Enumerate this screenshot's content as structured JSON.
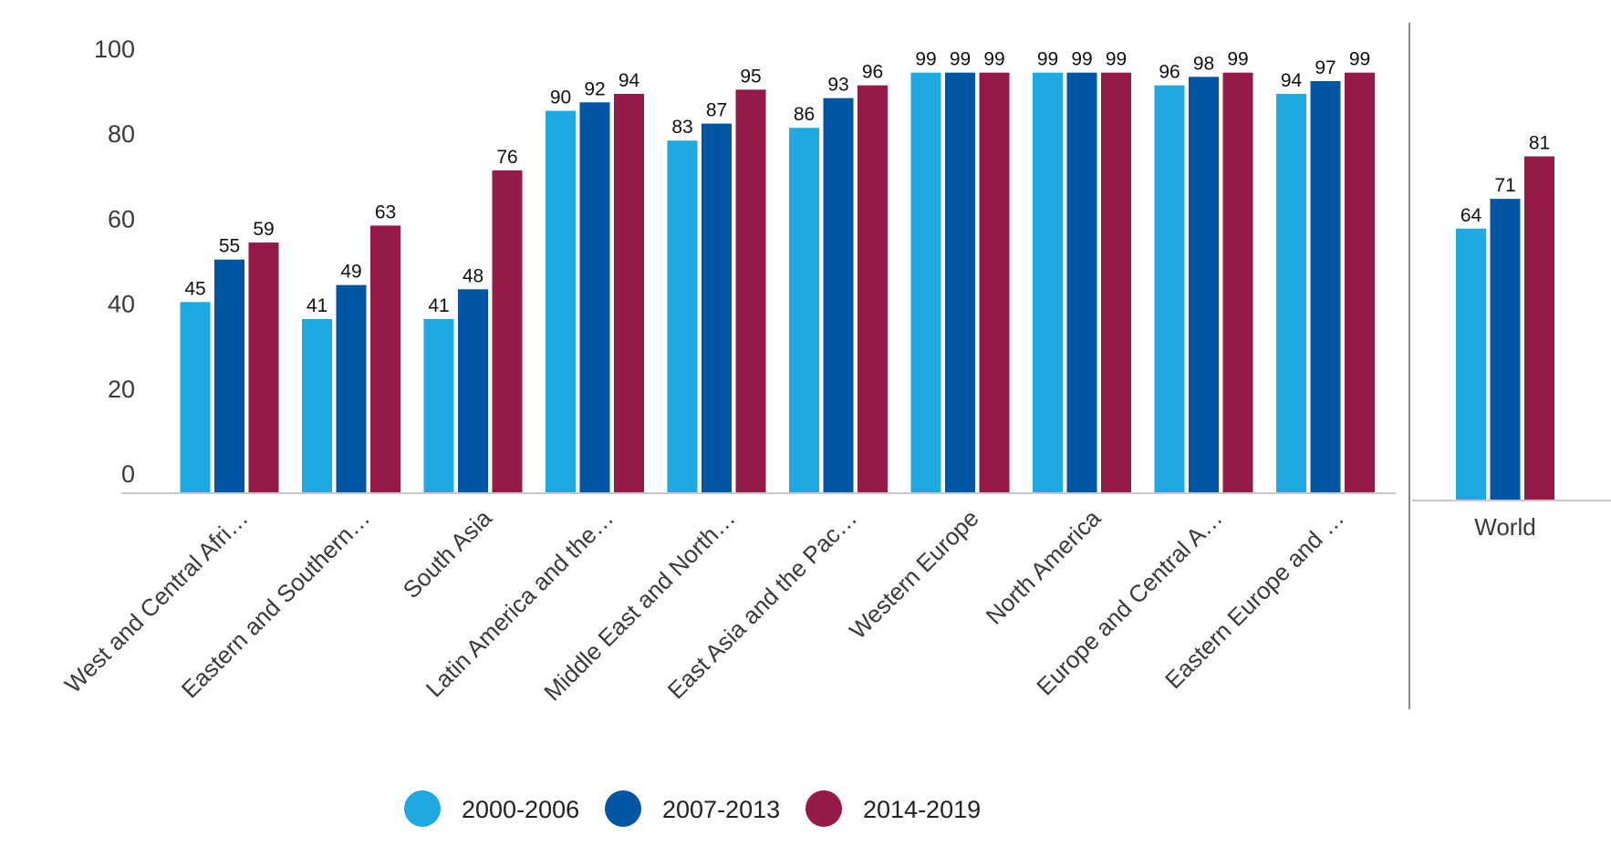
{
  "chart_data": [
    {
      "type": "bar",
      "categories": [
        "West and Central Afri…",
        "Eastern and Southern…",
        "South Asia",
        "Latin America and the…",
        "Middle East and North…",
        "East Asia and the Pac…",
        "Western Europe",
        "North America",
        "Europe and Central A…",
        "Eastern Europe and …"
      ],
      "series": [
        {
          "name": "2000-2006",
          "color": "#1ea9e1",
          "values": [
            45,
            41,
            41,
            90,
            83,
            86,
            99,
            99,
            96,
            94
          ]
        },
        {
          "name": "2007-2013",
          "color": "#0055a5",
          "values": [
            55,
            49,
            48,
            92,
            87,
            93,
            99,
            99,
            98,
            97
          ]
        },
        {
          "name": "2014-2019",
          "color": "#961a48",
          "values": [
            59,
            63,
            76,
            94,
            95,
            96,
            99,
            99,
            99,
            99
          ]
        }
      ],
      "yticks": [
        0,
        20,
        40,
        60,
        80,
        100
      ],
      "ylim": [
        0,
        100
      ],
      "grid": false,
      "legend_position": "bottom"
    },
    {
      "type": "bar",
      "categories": [
        "World"
      ],
      "series": [
        {
          "name": "2000-2006",
          "color": "#1ea9e1",
          "values": [
            64
          ]
        },
        {
          "name": "2007-2013",
          "color": "#0055a5",
          "values": [
            71
          ]
        },
        {
          "name": "2014-2019",
          "color": "#961a48",
          "values": [
            81
          ]
        }
      ],
      "ylim": [
        0,
        100
      ],
      "grid": false
    }
  ],
  "legend": {
    "items": [
      {
        "label": "2000-2006",
        "color": "#1ea9e1"
      },
      {
        "label": "2007-2013",
        "color": "#0055a5"
      },
      {
        "label": "2014-2019",
        "color": "#961a48"
      }
    ]
  }
}
